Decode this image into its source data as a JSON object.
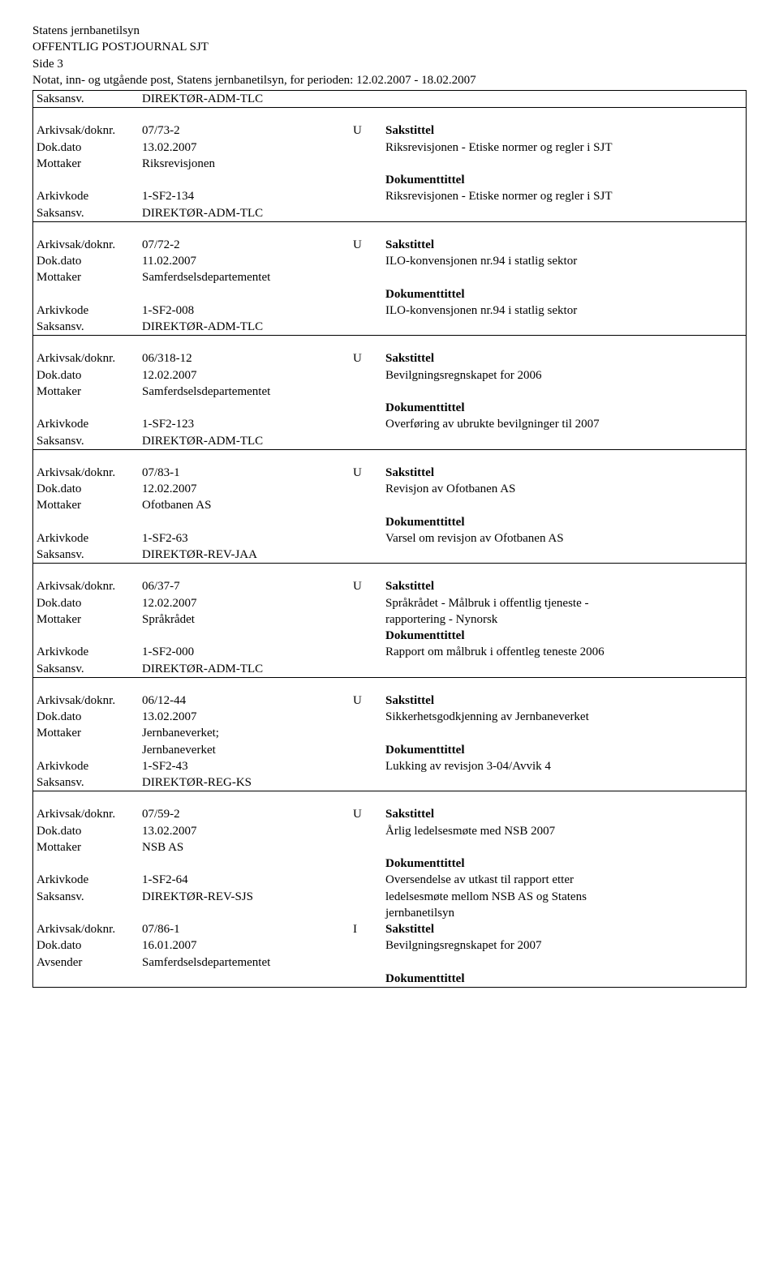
{
  "header": {
    "org": "Statens jernbanetilsyn",
    "journal": "OFFENTLIG POSTJOURNAL SJT",
    "side": "Side 3",
    "period": "Notat, inn- og utgående post, Statens jernbanetilsyn, for perioden: 12.02.2007 - 18.02.2007"
  },
  "labels": {
    "saksansv": "Saksansv.",
    "arkivsak": "Arkivsak/doknr.",
    "dokdato": "Dok.dato",
    "mottaker": "Mottaker",
    "avsender": "Avsender",
    "arkivkode": "Arkivkode",
    "sakstittel": "Sakstittel",
    "dokumenttittel": "Dokumenttittel"
  },
  "top_saksansv": "DIREKTØR-ADM-TLC",
  "cases": [
    {
      "arkivsak": "07/73-2",
      "dir": "U",
      "dokdato": "13.02.2007",
      "party_label": "Mottaker",
      "party": "Riksrevisjonen",
      "arkivkode": "1-SF2-134",
      "saksansv": "DIREKTØR-ADM-TLC",
      "sakstittel_text": "Riksrevisjonen - Etiske normer og regler i SJT",
      "doktittel_text": "Riksrevisjonen - Etiske normer og regler i SJT"
    },
    {
      "arkivsak": "07/72-2",
      "dir": "U",
      "dokdato": "11.02.2007",
      "party_label": "Mottaker",
      "party": "Samferdselsdepartementet",
      "arkivkode": "1-SF2-008",
      "saksansv": "DIREKTØR-ADM-TLC",
      "sakstittel_text": "ILO-konvensjonen nr.94 i statlig sektor",
      "doktittel_text": "ILO-konvensjonen nr.94 i statlig sektor"
    },
    {
      "arkivsak": "06/318-12",
      "dir": "U",
      "dokdato": "12.02.2007",
      "party_label": "Mottaker",
      "party": "Samferdselsdepartementet",
      "arkivkode": "1-SF2-123",
      "saksansv": "DIREKTØR-ADM-TLC",
      "sakstittel_text": "Bevilgningsregnskapet for 2006",
      "doktittel_text": "Overføring av ubrukte bevilgninger til 2007"
    },
    {
      "arkivsak": "07/83-1",
      "dir": "U",
      "dokdato": "12.02.2007",
      "party_label": "Mottaker",
      "party": "Ofotbanen AS",
      "arkivkode": "1-SF2-63",
      "saksansv": "DIREKTØR-REV-JAA",
      "sakstittel_text": "Revisjon av Ofotbanen AS",
      "doktittel_text": "Varsel om revisjon av Ofotbanen AS"
    },
    {
      "arkivsak": "06/37-7",
      "dir": "U",
      "dokdato": "12.02.2007",
      "party_label": "Mottaker",
      "party": "Språkrådet",
      "arkivkode": "1-SF2-000",
      "saksansv": "DIREKTØR-ADM-TLC",
      "sakstittel_text": "Språkrådet - Målbruk i offentlig tjeneste - rapportering - Nynorsk",
      "doktittel_text": "Rapport om målbruk i offentleg teneste 2006",
      "sakstittel_2rows": true
    },
    {
      "arkivsak": "06/12-44",
      "dir": "U",
      "dokdato": "13.02.2007",
      "party_label": "Mottaker",
      "party": "Jernbaneverket;",
      "party2": "Jernbaneverket",
      "arkivkode": "1-SF2-43",
      "saksansv": "DIREKTØR-REG-KS",
      "sakstittel_text": "Sikkerhetsgodkjenning av Jernbaneverket",
      "doktittel_text": "Lukking av revisjon 3-04/Avvik 4"
    },
    {
      "arkivsak": "07/59-2",
      "dir": "U",
      "dokdato": "13.02.2007",
      "party_label": "Mottaker",
      "party": "NSB AS",
      "arkivkode": "1-SF2-64",
      "saksansv": "DIREKTØR-REV-SJS",
      "sakstittel_text": "Årlig ledelsesmøte med NSB 2007",
      "doktittel_text": "Oversendelse av utkast til rapport etter ledelsesmøte mellom NSB AS og Statens jernbanetilsyn",
      "doktittel_3rows": true,
      "nested": {
        "arkivsak": "07/86-1",
        "dir": "I",
        "dokdato": "16.01.2007",
        "party_label": "Avsender",
        "party": "Samferdselsdepartementet",
        "sakstittel_text": "Bevilgningsregnskapet for 2007"
      }
    }
  ]
}
